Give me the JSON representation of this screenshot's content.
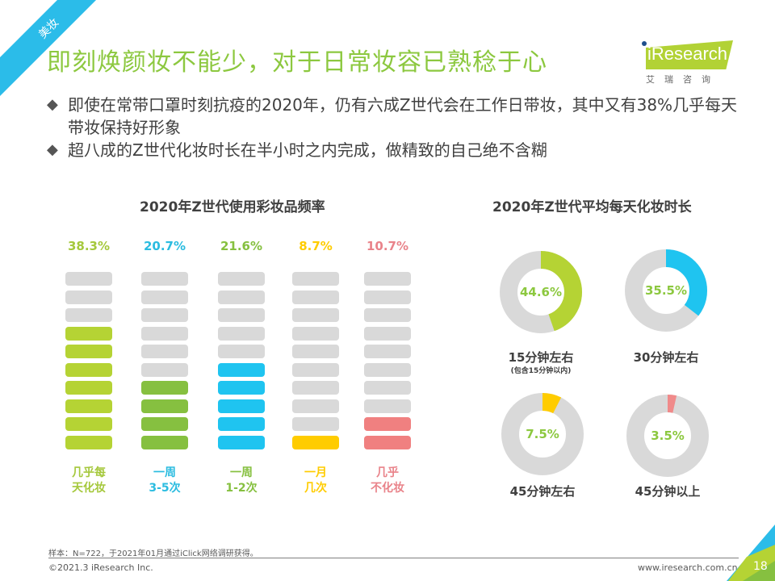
{
  "ribbon": {
    "label": "美妆",
    "color": "#2bbce9"
  },
  "title": "即刻焕颜妆不能少，对于日常妆容已熟稔于心",
  "logo": {
    "name": "iResearch",
    "subtitle": "艾瑞咨询"
  },
  "bullets": [
    "即使在常带口罩时刻抗疫的2020年，仍有六成Z世代会在工作日带妆，其中又有38%几乎每天带妆保持好形象",
    "超八成的Z世代化妆时长在半小时之内完成，做精致的自己绝不含糊"
  ],
  "chart_data": [
    {
      "type": "bar",
      "title": "2020年Z世代使用彩妆品频率",
      "categories": [
        "几乎每天化妆",
        "一周3-5次",
        "一周1-2次",
        "一月几次",
        "几乎不化妆"
      ],
      "category_lines": [
        [
          "几乎每",
          "天化妆"
        ],
        [
          "一周",
          "3-5次"
        ],
        [
          "一周",
          "1-2次"
        ],
        [
          "一月",
          "几次"
        ],
        [
          "几乎",
          "不化妆"
        ]
      ],
      "values": [
        38.3,
        20.7,
        21.6,
        8.7,
        10.7
      ],
      "value_labels": [
        "38.3%",
        "20.7%",
        "21.6%",
        "8.7%",
        "10.7%"
      ],
      "segments_total": 10,
      "segments_filled": [
        7,
        4,
        5,
        1,
        2
      ],
      "colors": [
        "#b5d334",
        "#86c040",
        "#1fc4f0",
        "#ffcc00",
        "#f08080"
      ],
      "label_colors": [
        "#a5c83c",
        "#2bbce0",
        "#86c040",
        "#ffcc00",
        "#e9838a"
      ],
      "unit": "%",
      "empty_color": "#d9d9d9"
    },
    {
      "type": "pie",
      "title": "2020年Z世代平均每天化妆时长",
      "categories": [
        "15分钟左右",
        "30分钟左右",
        "45分钟左右",
        "45分钟以上"
      ],
      "category_notes": [
        "(包含15分钟以内)",
        "",
        "",
        ""
      ],
      "values": [
        44.6,
        35.5,
        7.5,
        3.5
      ],
      "value_labels": [
        "44.6%",
        "35.5%",
        "7.5%",
        "3.5%"
      ],
      "colors": [
        "#b5d334",
        "#1fc4f0",
        "#ffcc00",
        "#f08a8a"
      ],
      "remainder_color": "#d9d9d9",
      "unit": "%"
    }
  ],
  "footer": {
    "note": "样本：N=722，于2021年01月通过iClick网络调研获得。",
    "copyright": "©2021.3 iResearch Inc.",
    "url": "www.iresearch.com.cn",
    "page": "18"
  }
}
